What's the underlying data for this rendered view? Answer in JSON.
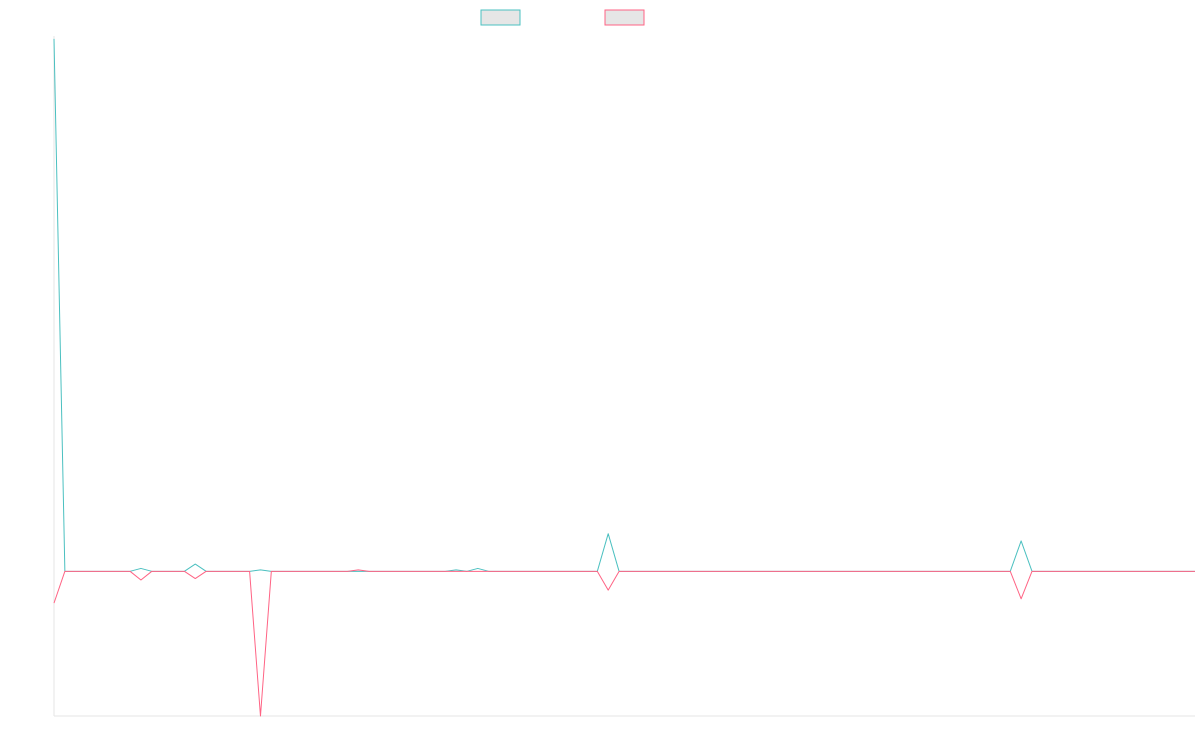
{
  "chart_data": {
    "type": "line",
    "title": "",
    "xlabel": "",
    "ylabel": "",
    "grid": false,
    "legend_position": "top-center",
    "x": [
      0,
      1,
      2,
      3,
      4,
      5,
      6,
      7,
      8,
      9,
      10,
      11,
      12,
      13,
      14,
      15,
      16,
      17,
      18,
      19,
      20,
      21,
      22,
      23,
      24,
      25,
      26,
      27,
      28,
      29,
      30,
      31,
      32,
      33,
      34,
      35,
      36,
      37,
      38,
      39,
      40,
      41,
      42,
      43,
      44,
      45,
      46,
      47,
      48,
      49,
      50,
      51,
      52,
      53,
      54,
      55,
      56,
      57,
      58,
      59,
      60,
      61,
      62,
      63,
      64,
      65,
      66,
      67,
      68,
      69,
      70,
      71,
      72,
      73,
      74,
      75,
      76,
      77,
      78,
      79,
      80,
      81,
      82,
      83,
      84,
      85,
      86,
      87,
      88,
      89,
      90,
      91,
      92,
      93,
      94,
      95,
      96,
      97,
      98,
      99,
      100,
      101,
      102,
      103,
      104,
      105
    ],
    "ylim": [
      -100,
      370
    ],
    "series": [
      {
        "name": "",
        "color": "#4bc0c0",
        "values": [
          368,
          0,
          0,
          0,
          0,
          0,
          0,
          0,
          2,
          0,
          0,
          0,
          0,
          5,
          0,
          0,
          0,
          0,
          0,
          1,
          0,
          0,
          0,
          0,
          0,
          0,
          0,
          0,
          0,
          0,
          0,
          0,
          0,
          0,
          0,
          0,
          0,
          1,
          0,
          2,
          0,
          0,
          0,
          0,
          0,
          0,
          0,
          0,
          0,
          0,
          0,
          26,
          0,
          0,
          0,
          0,
          0,
          0,
          0,
          0,
          0,
          0,
          0,
          0,
          0,
          0,
          0,
          0,
          0,
          0,
          0,
          0,
          0,
          0,
          0,
          0,
          0,
          0,
          0,
          0,
          0,
          0,
          0,
          0,
          0,
          0,
          0,
          0,
          0,
          21,
          0,
          0,
          0,
          0,
          0,
          0,
          0,
          0,
          0,
          0,
          0,
          0,
          0,
          0,
          0,
          0
        ]
      },
      {
        "name": "",
        "color": "#ff6384",
        "values": [
          -22,
          0,
          0,
          0,
          0,
          0,
          0,
          0,
          -6,
          0,
          0,
          0,
          0,
          -5,
          0,
          0,
          0,
          0,
          0,
          -100,
          0,
          0,
          0,
          0,
          0,
          0,
          0,
          0,
          1,
          0,
          0,
          0,
          0,
          0,
          0,
          0,
          0,
          0,
          0,
          0,
          0,
          0,
          0,
          0,
          0,
          0,
          0,
          0,
          0,
          0,
          0,
          -13,
          0,
          0,
          0,
          0,
          0,
          0,
          0,
          0,
          0,
          0,
          0,
          0,
          0,
          0,
          0,
          0,
          0,
          0,
          0,
          0,
          0,
          0,
          0,
          0,
          0,
          0,
          0,
          0,
          0,
          0,
          0,
          0,
          0,
          0,
          0,
          0,
          0,
          -19,
          0,
          0,
          0,
          0,
          0,
          0,
          0,
          0,
          0,
          0,
          0,
          0,
          0,
          0,
          0,
          0
        ]
      }
    ]
  }
}
